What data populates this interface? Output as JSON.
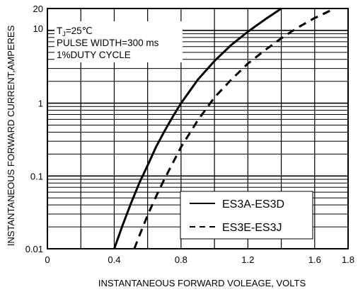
{
  "chart_data": {
    "type": "line",
    "xlabel": "INSTANTANEOUS FORWARD VOLEAGE, VOLTS",
    "ylabel": "INSTANTANEOUS FORWARD CURRENT,AMPERES",
    "xlim": [
      0,
      1.8
    ],
    "ylim": [
      0.01,
      20
    ],
    "yscale": "log",
    "grid": true,
    "x_ticks": [
      {
        "value": 0,
        "label": "0"
      },
      {
        "value": 0.4,
        "label": "0.4"
      },
      {
        "value": 0.8,
        "label": "0.8"
      },
      {
        "value": 1.2,
        "label": "1.2"
      },
      {
        "value": 1.6,
        "label": "1.6"
      },
      {
        "value": 1.8,
        "label": "1.8"
      }
    ],
    "y_ticks": [
      {
        "value": 20,
        "label": "20"
      },
      {
        "value": 10,
        "label": "10"
      },
      {
        "value": 1,
        "label": "1"
      },
      {
        "value": 0.1,
        "label": "0.1"
      },
      {
        "value": 0.01,
        "label": "0.01"
      }
    ],
    "annotation": {
      "line1_main": "T",
      "line1_sub": "J",
      "line1_rest": "=25℃",
      "line2": "PULSE WIDTH=300 ms",
      "line3": "1%DUTY CYCLE"
    },
    "legend_position": "bottom-right",
    "series": [
      {
        "name": "ES3A-ES3D",
        "style": "solid",
        "x": [
          0.4,
          0.45,
          0.5,
          0.55,
          0.6,
          0.65,
          0.7,
          0.75,
          0.8,
          0.9,
          1.0,
          1.1,
          1.2,
          1.3,
          1.4
        ],
        "y": [
          0.01,
          0.021,
          0.042,
          0.08,
          0.14,
          0.25,
          0.41,
          0.65,
          1.0,
          2.1,
          3.8,
          6.3,
          9.6,
          14.0,
          20.0
        ]
      },
      {
        "name": "ES3E-ES3J",
        "style": "dashed",
        "x": [
          0.52,
          0.55,
          0.6,
          0.65,
          0.7,
          0.75,
          0.8,
          0.9,
          1.0,
          1.1,
          1.2,
          1.3,
          1.4,
          1.5,
          1.6,
          1.72
        ],
        "y": [
          0.01,
          0.015,
          0.029,
          0.052,
          0.09,
          0.15,
          0.25,
          0.58,
          1.2,
          2.1,
          3.5,
          5.3,
          7.8,
          11.0,
          14.8,
          20.0
        ]
      }
    ]
  }
}
